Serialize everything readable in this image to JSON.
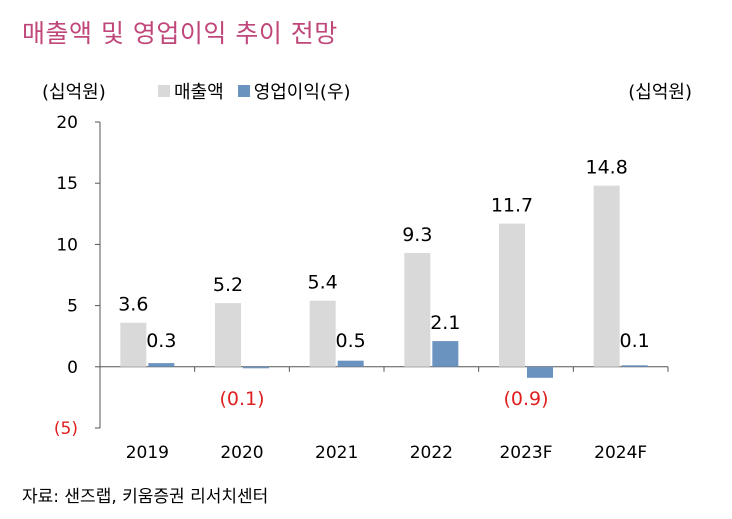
{
  "title": "매출액 및 영업이익 추이 전망",
  "unit_left": "(십억원)",
  "unit_right": "(십억원)",
  "source": "자료: 샌즈랩, 키움증권 리서치센터",
  "colors": {
    "revenue": "#d9d9d9",
    "op_income": "#6b93c0",
    "title": "#c0477a",
    "negative": "#e02020"
  },
  "chart_data": {
    "type": "bar",
    "categories": [
      "2019",
      "2020",
      "2021",
      "2022",
      "2023F",
      "2024F"
    ],
    "series": [
      {
        "name": "매출액",
        "values": [
          3.6,
          5.2,
          5.4,
          9.3,
          11.7,
          14.8
        ],
        "labels": [
          "3.6",
          "5.2",
          "5.4",
          "9.3",
          "11.7",
          "14.8"
        ]
      },
      {
        "name": "영업이익(우)",
        "values": [
          0.3,
          -0.1,
          0.5,
          2.1,
          -0.9,
          0.1
        ],
        "labels": [
          "0.3",
          "(0.1)",
          "0.5",
          "2.1",
          "(0.9)",
          "0.1"
        ]
      }
    ],
    "y_ticks": [
      "20",
      "15",
      "10",
      "5",
      "0",
      "(5)"
    ],
    "y_tick_values": [
      20,
      15,
      10,
      5,
      0,
      -5
    ],
    "ylim": [
      -5,
      20
    ],
    "grid": false,
    "legend_position": "top-left"
  }
}
